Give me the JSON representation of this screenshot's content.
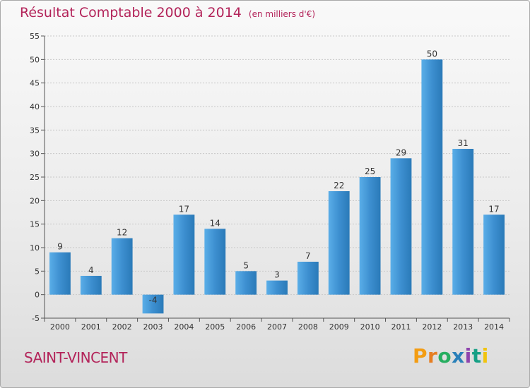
{
  "title": {
    "main": "Résultat Comptable 2000 à 2014",
    "unit": "(en milliers d'€)"
  },
  "commune": "SAINT-VINCENT",
  "logo": {
    "letters": [
      "P",
      "r",
      "o",
      "x",
      "i",
      "t",
      "i"
    ],
    "colors": [
      "#f39c12",
      "#e67e22",
      "#27ae60",
      "#2980b9",
      "#8e44ad",
      "#16a085",
      "#f1c40f"
    ]
  },
  "chart_data": {
    "type": "bar",
    "title": "Résultat Comptable 2000 à 2014",
    "subtitle": "(en milliers d'€)",
    "categories": [
      "2000",
      "2001",
      "2002",
      "2003",
      "2004",
      "2005",
      "2006",
      "2007",
      "2008",
      "2009",
      "2010",
      "2011",
      "2012",
      "2013",
      "2014"
    ],
    "values": [
      9,
      4,
      12,
      -4,
      17,
      14,
      5,
      3,
      7,
      22,
      25,
      29,
      50,
      31,
      17
    ],
    "ylim": [
      -5,
      55
    ],
    "yticks": [
      -5,
      0,
      5,
      10,
      15,
      20,
      25,
      30,
      35,
      40,
      45,
      50,
      55
    ],
    "grid": true,
    "bar_color": "#3d8fd0",
    "bar_color_light": "#5aaee8",
    "bar_color_dark": "#2a7ab8"
  }
}
